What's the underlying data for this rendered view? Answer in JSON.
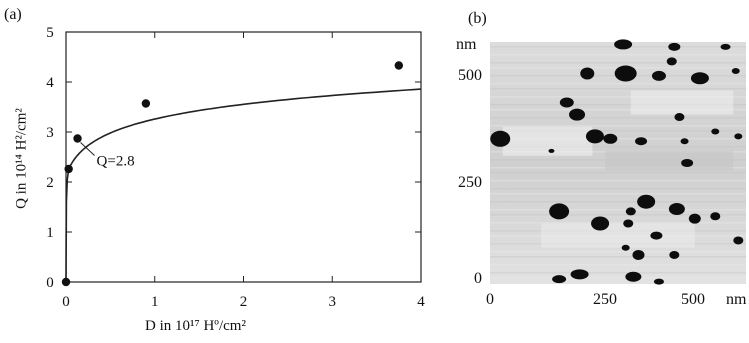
{
  "panel_a": {
    "label": "(a)",
    "ylabel": "Q in 10¹⁴ H²/cm²",
    "xlabel": "D in 10¹⁷ Hº/cm²",
    "annotation": "Q=2.8"
  },
  "panel_b": {
    "label": "(b)",
    "unit_top": "nm",
    "unit_right": "nm",
    "y_ticks": [
      "500",
      "250",
      "0"
    ],
    "x_ticks": [
      "0",
      "250",
      "500"
    ]
  },
  "chart_data": [
    {
      "type": "line",
      "title": "",
      "xlabel": "D in 10¹⁷ Hº/cm²",
      "ylabel": "Q in 10¹⁴ H²/cm²",
      "xlim": [
        0,
        4
      ],
      "ylim": [
        0,
        5
      ],
      "x_ticks": [
        0,
        1,
        2,
        3,
        4
      ],
      "y_ticks": [
        0,
        1,
        2,
        3,
        4,
        5
      ],
      "grid": false,
      "series": [
        {
          "points": [
            {
              "x": 0.0,
              "y": 0.0
            },
            {
              "x": 0.03,
              "y": 2.26
            },
            {
              "x": 0.13,
              "y": 2.87
            },
            {
              "x": 0.9,
              "y": 3.57
            },
            {
              "x": 3.75,
              "y": 4.33
            }
          ]
        }
      ],
      "annotations": [
        {
          "text": "Q=2.8",
          "x": 0.13,
          "y": 2.87
        }
      ]
    },
    {
      "type": "image",
      "description_axes": {
        "x_range_nm": [
          0,
          600
        ],
        "y_range_nm": [
          0,
          600
        ]
      },
      "x_ticks": [
        0,
        250,
        500
      ],
      "y_ticks": [
        0,
        250,
        500
      ]
    }
  ]
}
